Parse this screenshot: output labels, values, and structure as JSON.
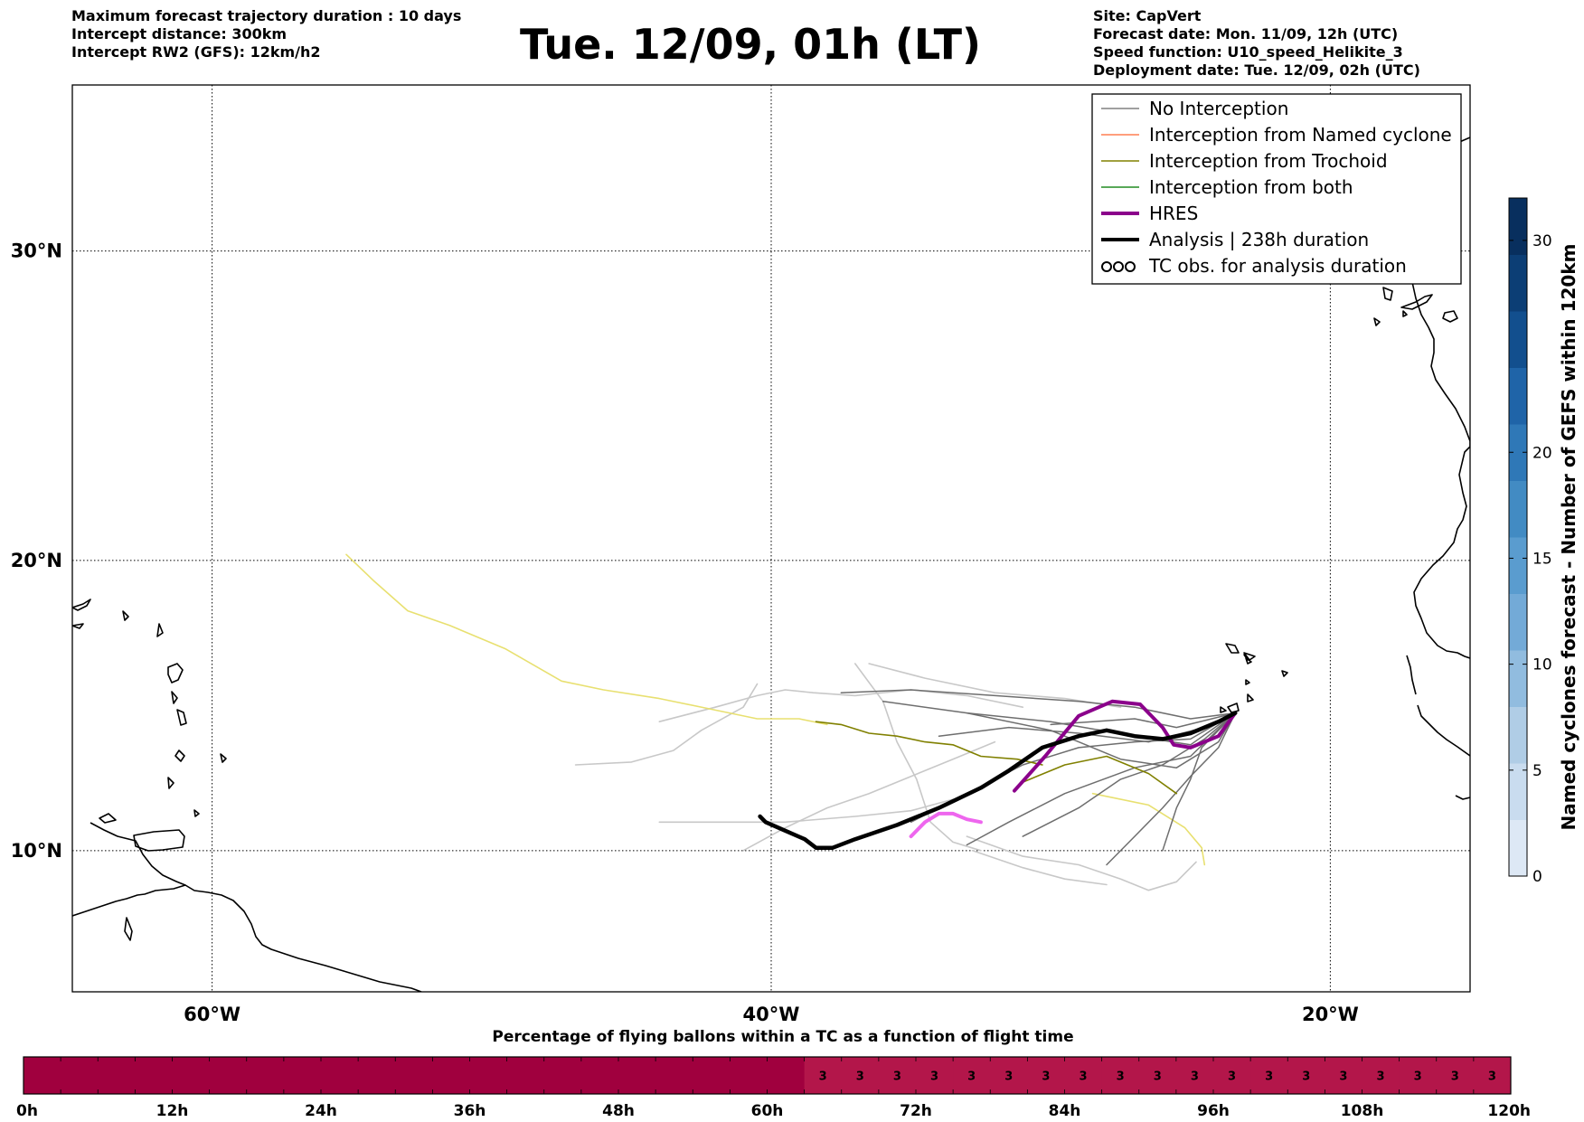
{
  "header": {
    "left": [
      "Maximum forecast trajectory duration : 10 days",
      "Intercept distance: 300km",
      "Intercept RW2 (GFS):  12km/h2"
    ],
    "title": "Tue. 12/09, 01h (LT)",
    "right": [
      "Site: CapVert",
      "Forecast date: Mon. 11/09, 12h (UTC)",
      "Speed function: U10_speed_Helikite_3",
      "Deployment date: Tue. 12/09, 02h (UTC)"
    ]
  },
  "map": {
    "extent": {
      "lon": [
        -65,
        -15
      ],
      "lat": [
        5,
        35
      ]
    },
    "lat_ticks": [
      {
        "lat": 30,
        "label": "30°N"
      },
      {
        "lat": 20,
        "label": "20°N"
      },
      {
        "lat": 10,
        "label": "10°N"
      }
    ],
    "lon_ticks": [
      {
        "lon": -60,
        "label": "60°W"
      },
      {
        "lon": -40,
        "label": "40°W"
      },
      {
        "lon": -20,
        "label": "20°W"
      }
    ],
    "colors": {
      "no_interception": "#808080",
      "named_cyclone": "#ff7f50",
      "trochoid": "#808000",
      "both": "#228b22",
      "hres": "#8b008b",
      "analysis": "#000000",
      "gefs_light": "#c8c8c8",
      "yellow_track": "#e8e070",
      "hres_light": "#ee66ee"
    },
    "legend": [
      {
        "label": "No Interception",
        "style": "line",
        "color": "#808080",
        "width": 1.5
      },
      {
        "label": "Interception from Named cyclone",
        "style": "line",
        "color": "#ff7f50",
        "width": 1.5
      },
      {
        "label": "Interception from Trochoid",
        "style": "line",
        "color": "#808000",
        "width": 1.5
      },
      {
        "label": "Interception from both",
        "style": "line",
        "color": "#228b22",
        "width": 1.5
      },
      {
        "label": "HRES",
        "style": "line",
        "color": "#8b008b",
        "width": 4
      },
      {
        "label": "Analysis | 238h duration",
        "style": "line",
        "color": "#000000",
        "width": 4
      },
      {
        "label": "TC obs. for analysis duration",
        "style": "tc-symbol",
        "color": "#000000",
        "width": 2
      }
    ],
    "tracks": [
      {
        "kind": "analysis",
        "points": [
          [
            -40.4,
            11.2
          ],
          [
            -40.2,
            11.0
          ],
          [
            -39.5,
            10.7
          ],
          [
            -38.8,
            10.4
          ],
          [
            -38.4,
            10.1
          ],
          [
            -37.8,
            10.1
          ],
          [
            -37.0,
            10.4
          ],
          [
            -35.5,
            10.9
          ],
          [
            -34.0,
            11.5
          ],
          [
            -32.5,
            12.2
          ],
          [
            -31.5,
            12.8
          ],
          [
            -30.3,
            13.6
          ],
          [
            -29.0,
            14.0
          ],
          [
            -28.0,
            14.2
          ],
          [
            -27.0,
            14.0
          ],
          [
            -26.0,
            13.9
          ],
          [
            -25.0,
            14.1
          ],
          [
            -24.0,
            14.5
          ],
          [
            -23.4,
            14.8
          ]
        ]
      },
      {
        "kind": "hres",
        "points": [
          [
            -31.3,
            12.1
          ],
          [
            -30.2,
            13.3
          ],
          [
            -29.0,
            14.7
          ],
          [
            -27.8,
            15.2
          ],
          [
            -26.8,
            15.1
          ],
          [
            -26.0,
            14.3
          ],
          [
            -25.6,
            13.7
          ],
          [
            -25.0,
            13.6
          ],
          [
            -24.0,
            14.0
          ],
          [
            -23.4,
            14.8
          ]
        ]
      },
      {
        "kind": "hres_light",
        "points": [
          [
            -35.0,
            10.5
          ],
          [
            -34.5,
            11.0
          ],
          [
            -34.0,
            11.3
          ],
          [
            -33.5,
            11.3
          ],
          [
            -33.0,
            11.1
          ],
          [
            -32.5,
            11.0
          ]
        ]
      },
      {
        "kind": "yellow",
        "points": [
          [
            -55.2,
            20.2
          ],
          [
            -54.2,
            19.3
          ],
          [
            -53.0,
            18.3
          ],
          [
            -51.5,
            17.8
          ],
          [
            -49.5,
            17.0
          ],
          [
            -47.5,
            15.9
          ],
          [
            -46.0,
            15.6
          ],
          [
            -44.0,
            15.3
          ],
          [
            -42.0,
            14.9
          ],
          [
            -40.5,
            14.6
          ],
          [
            -39.0,
            14.6
          ],
          [
            -38.0,
            14.4
          ]
        ]
      },
      {
        "kind": "yellow",
        "points": [
          [
            -28.5,
            12.0
          ],
          [
            -26.5,
            11.6
          ],
          [
            -25.2,
            10.8
          ],
          [
            -24.6,
            10.1
          ],
          [
            -24.5,
            9.5
          ]
        ]
      },
      {
        "kind": "trochoid",
        "points": [
          [
            -38.4,
            14.5
          ],
          [
            -37.5,
            14.4
          ],
          [
            -36.5,
            14.1
          ],
          [
            -35.5,
            14.0
          ],
          [
            -34.5,
            13.8
          ],
          [
            -33.5,
            13.7
          ],
          [
            -32.5,
            13.3
          ],
          [
            -31.2,
            13.2
          ],
          [
            -30.3,
            13.0
          ]
        ]
      },
      {
        "kind": "trochoid",
        "points": [
          [
            -31.0,
            12.4
          ],
          [
            -29.5,
            13.0
          ],
          [
            -28.0,
            13.3
          ],
          [
            -26.5,
            12.7
          ],
          [
            -25.5,
            12.0
          ]
        ]
      },
      {
        "kind": "gefs",
        "points": [
          [
            -37.5,
            15.5
          ],
          [
            -35.0,
            15.6
          ],
          [
            -32.0,
            15.4
          ],
          [
            -29.0,
            15.2
          ],
          [
            -27.0,
            15.0
          ],
          [
            -25.0,
            14.6
          ],
          [
            -23.4,
            14.8
          ]
        ]
      },
      {
        "kind": "gefs",
        "points": [
          [
            -36.0,
            15.2
          ],
          [
            -33.0,
            14.8
          ],
          [
            -30.0,
            14.5
          ],
          [
            -27.0,
            14.0
          ],
          [
            -25.0,
            13.7
          ],
          [
            -23.4,
            14.8
          ]
        ]
      },
      {
        "kind": "gefs",
        "points": [
          [
            -33.0,
            14.8
          ],
          [
            -30.0,
            14.2
          ],
          [
            -27.5,
            13.2
          ],
          [
            -25.5,
            12.9
          ],
          [
            -24.0,
            13.8
          ],
          [
            -23.4,
            14.8
          ]
        ]
      },
      {
        "kind": "gefs",
        "points": [
          [
            -30.0,
            14.4
          ],
          [
            -28.5,
            14.5
          ],
          [
            -27.0,
            14.6
          ],
          [
            -25.5,
            14.3
          ],
          [
            -23.4,
            14.8
          ]
        ]
      },
      {
        "kind": "gefs",
        "points": [
          [
            -33.0,
            10.2
          ],
          [
            -31.5,
            11.0
          ],
          [
            -29.5,
            12.0
          ],
          [
            -27.0,
            12.9
          ],
          [
            -25.0,
            13.3
          ],
          [
            -23.4,
            14.8
          ]
        ]
      },
      {
        "kind": "gefs",
        "points": [
          [
            -31.0,
            10.5
          ],
          [
            -29.0,
            11.5
          ],
          [
            -27.5,
            12.5
          ],
          [
            -26.0,
            13.0
          ],
          [
            -24.5,
            13.9
          ],
          [
            -23.4,
            14.8
          ]
        ]
      },
      {
        "kind": "gefs",
        "points": [
          [
            -28.0,
            9.5
          ],
          [
            -27.0,
            10.5
          ],
          [
            -26.0,
            11.5
          ],
          [
            -25.0,
            12.6
          ],
          [
            -24.0,
            13.6
          ],
          [
            -23.4,
            14.8
          ]
        ]
      },
      {
        "kind": "gefs",
        "points": [
          [
            -26.0,
            10.0
          ],
          [
            -25.5,
            11.5
          ],
          [
            -25.0,
            12.5
          ],
          [
            -24.6,
            13.6
          ],
          [
            -23.4,
            14.8
          ]
        ]
      },
      {
        "kind": "gefs",
        "points": [
          [
            -35.0,
            11.0
          ],
          [
            -33.0,
            12.0
          ],
          [
            -31.0,
            13.0
          ],
          [
            -29.0,
            13.6
          ],
          [
            -27.0,
            13.8
          ],
          [
            -25.0,
            13.9
          ],
          [
            -23.4,
            14.8
          ]
        ]
      },
      {
        "kind": "gefs",
        "points": [
          [
            -34.0,
            14.0
          ],
          [
            -31.5,
            14.3
          ],
          [
            -29.0,
            14.1
          ],
          [
            -26.5,
            13.8
          ],
          [
            -24.5,
            14.3
          ],
          [
            -23.4,
            14.8
          ]
        ]
      },
      {
        "kind": "gefs_light",
        "points": [
          [
            -44.0,
            14.5
          ],
          [
            -42.0,
            15.0
          ],
          [
            -40.5,
            15.4
          ],
          [
            -39.5,
            15.6
          ],
          [
            -38.5,
            15.5
          ],
          [
            -37.0,
            15.4
          ],
          [
            -35.0,
            15.6
          ],
          [
            -33.0,
            15.4
          ],
          [
            -31.0,
            15.0
          ]
        ]
      },
      {
        "kind": "gefs_light",
        "points": [
          [
            -47.0,
            13.0
          ],
          [
            -45.0,
            13.1
          ],
          [
            -43.5,
            13.5
          ],
          [
            -42.5,
            14.2
          ],
          [
            -41.0,
            15.0
          ],
          [
            -40.5,
            15.8
          ]
        ]
      },
      {
        "kind": "gefs_light",
        "points": [
          [
            -44.0,
            11.0
          ],
          [
            -41.5,
            11.0
          ],
          [
            -39.5,
            11.0
          ],
          [
            -37.0,
            11.2
          ],
          [
            -35.0,
            11.4
          ],
          [
            -33.5,
            11.8
          ]
        ]
      },
      {
        "kind": "gefs_light",
        "points": [
          [
            -41.0,
            10.0
          ],
          [
            -39.5,
            10.8
          ],
          [
            -38.0,
            11.5
          ],
          [
            -36.5,
            12.0
          ],
          [
            -35.0,
            12.6
          ],
          [
            -33.5,
            13.2
          ],
          [
            -32.0,
            13.8
          ]
        ]
      },
      {
        "kind": "gefs_light",
        "points": [
          [
            -37.0,
            16.5
          ],
          [
            -36.0,
            15.2
          ],
          [
            -35.5,
            13.8
          ],
          [
            -34.8,
            12.5
          ],
          [
            -34.3,
            11.0
          ],
          [
            -33.5,
            10.3
          ],
          [
            -32.5,
            10.0
          ]
        ]
      },
      {
        "kind": "gefs_light",
        "points": [
          [
            -33.0,
            10.5
          ],
          [
            -31.0,
            9.8
          ],
          [
            -29.0,
            9.5
          ],
          [
            -27.5,
            9.0
          ],
          [
            -26.5,
            8.6
          ],
          [
            -25.5,
            8.9
          ],
          [
            -24.8,
            9.6
          ]
        ]
      },
      {
        "kind": "gefs_light",
        "points": [
          [
            -32.8,
            10.0
          ],
          [
            -31.0,
            9.4
          ],
          [
            -29.5,
            9.0
          ],
          [
            -28.0,
            8.8
          ]
        ]
      },
      {
        "kind": "gefs_light",
        "points": [
          [
            -36.5,
            16.5
          ],
          [
            -34.5,
            16.0
          ],
          [
            -32.0,
            15.5
          ],
          [
            -29.5,
            15.3
          ],
          [
            -27.5,
            15.0
          ]
        ]
      }
    ]
  },
  "colorbar": {
    "label": "Named cyclones forecast - Number of GEFS within 120km",
    "ticks": [
      0,
      5,
      10,
      15,
      20,
      30
    ],
    "range": [
      0,
      32
    ],
    "colors": [
      "#dde8f5",
      "#c9dcef",
      "#b0cde6",
      "#91bcdf",
      "#73aad7",
      "#5a9ccf",
      "#428bc3",
      "#2f78b7",
      "#1f64a8",
      "#124f8e",
      "#0c3e75",
      "#082f5e"
    ]
  },
  "timebar": {
    "title": "Percentage of flying ballons within a TC as a function of flight time",
    "tick_labels": [
      "0h",
      "12h",
      "24h",
      "36h",
      "48h",
      "60h",
      "72h",
      "84h",
      "96h",
      "108h",
      "120h"
    ],
    "cells": [
      0,
      0,
      0,
      0,
      0,
      0,
      0,
      0,
      0,
      0,
      0,
      0,
      0,
      0,
      0,
      0,
      0,
      0,
      0,
      0,
      0,
      3,
      3,
      3,
      3,
      3,
      3,
      3,
      3,
      3,
      3,
      3,
      3,
      3,
      3,
      3,
      3,
      3,
      3,
      3
    ],
    "hours_max": 120,
    "color_zero": "#a0003e",
    "color_nonzero": "#b3164a"
  }
}
